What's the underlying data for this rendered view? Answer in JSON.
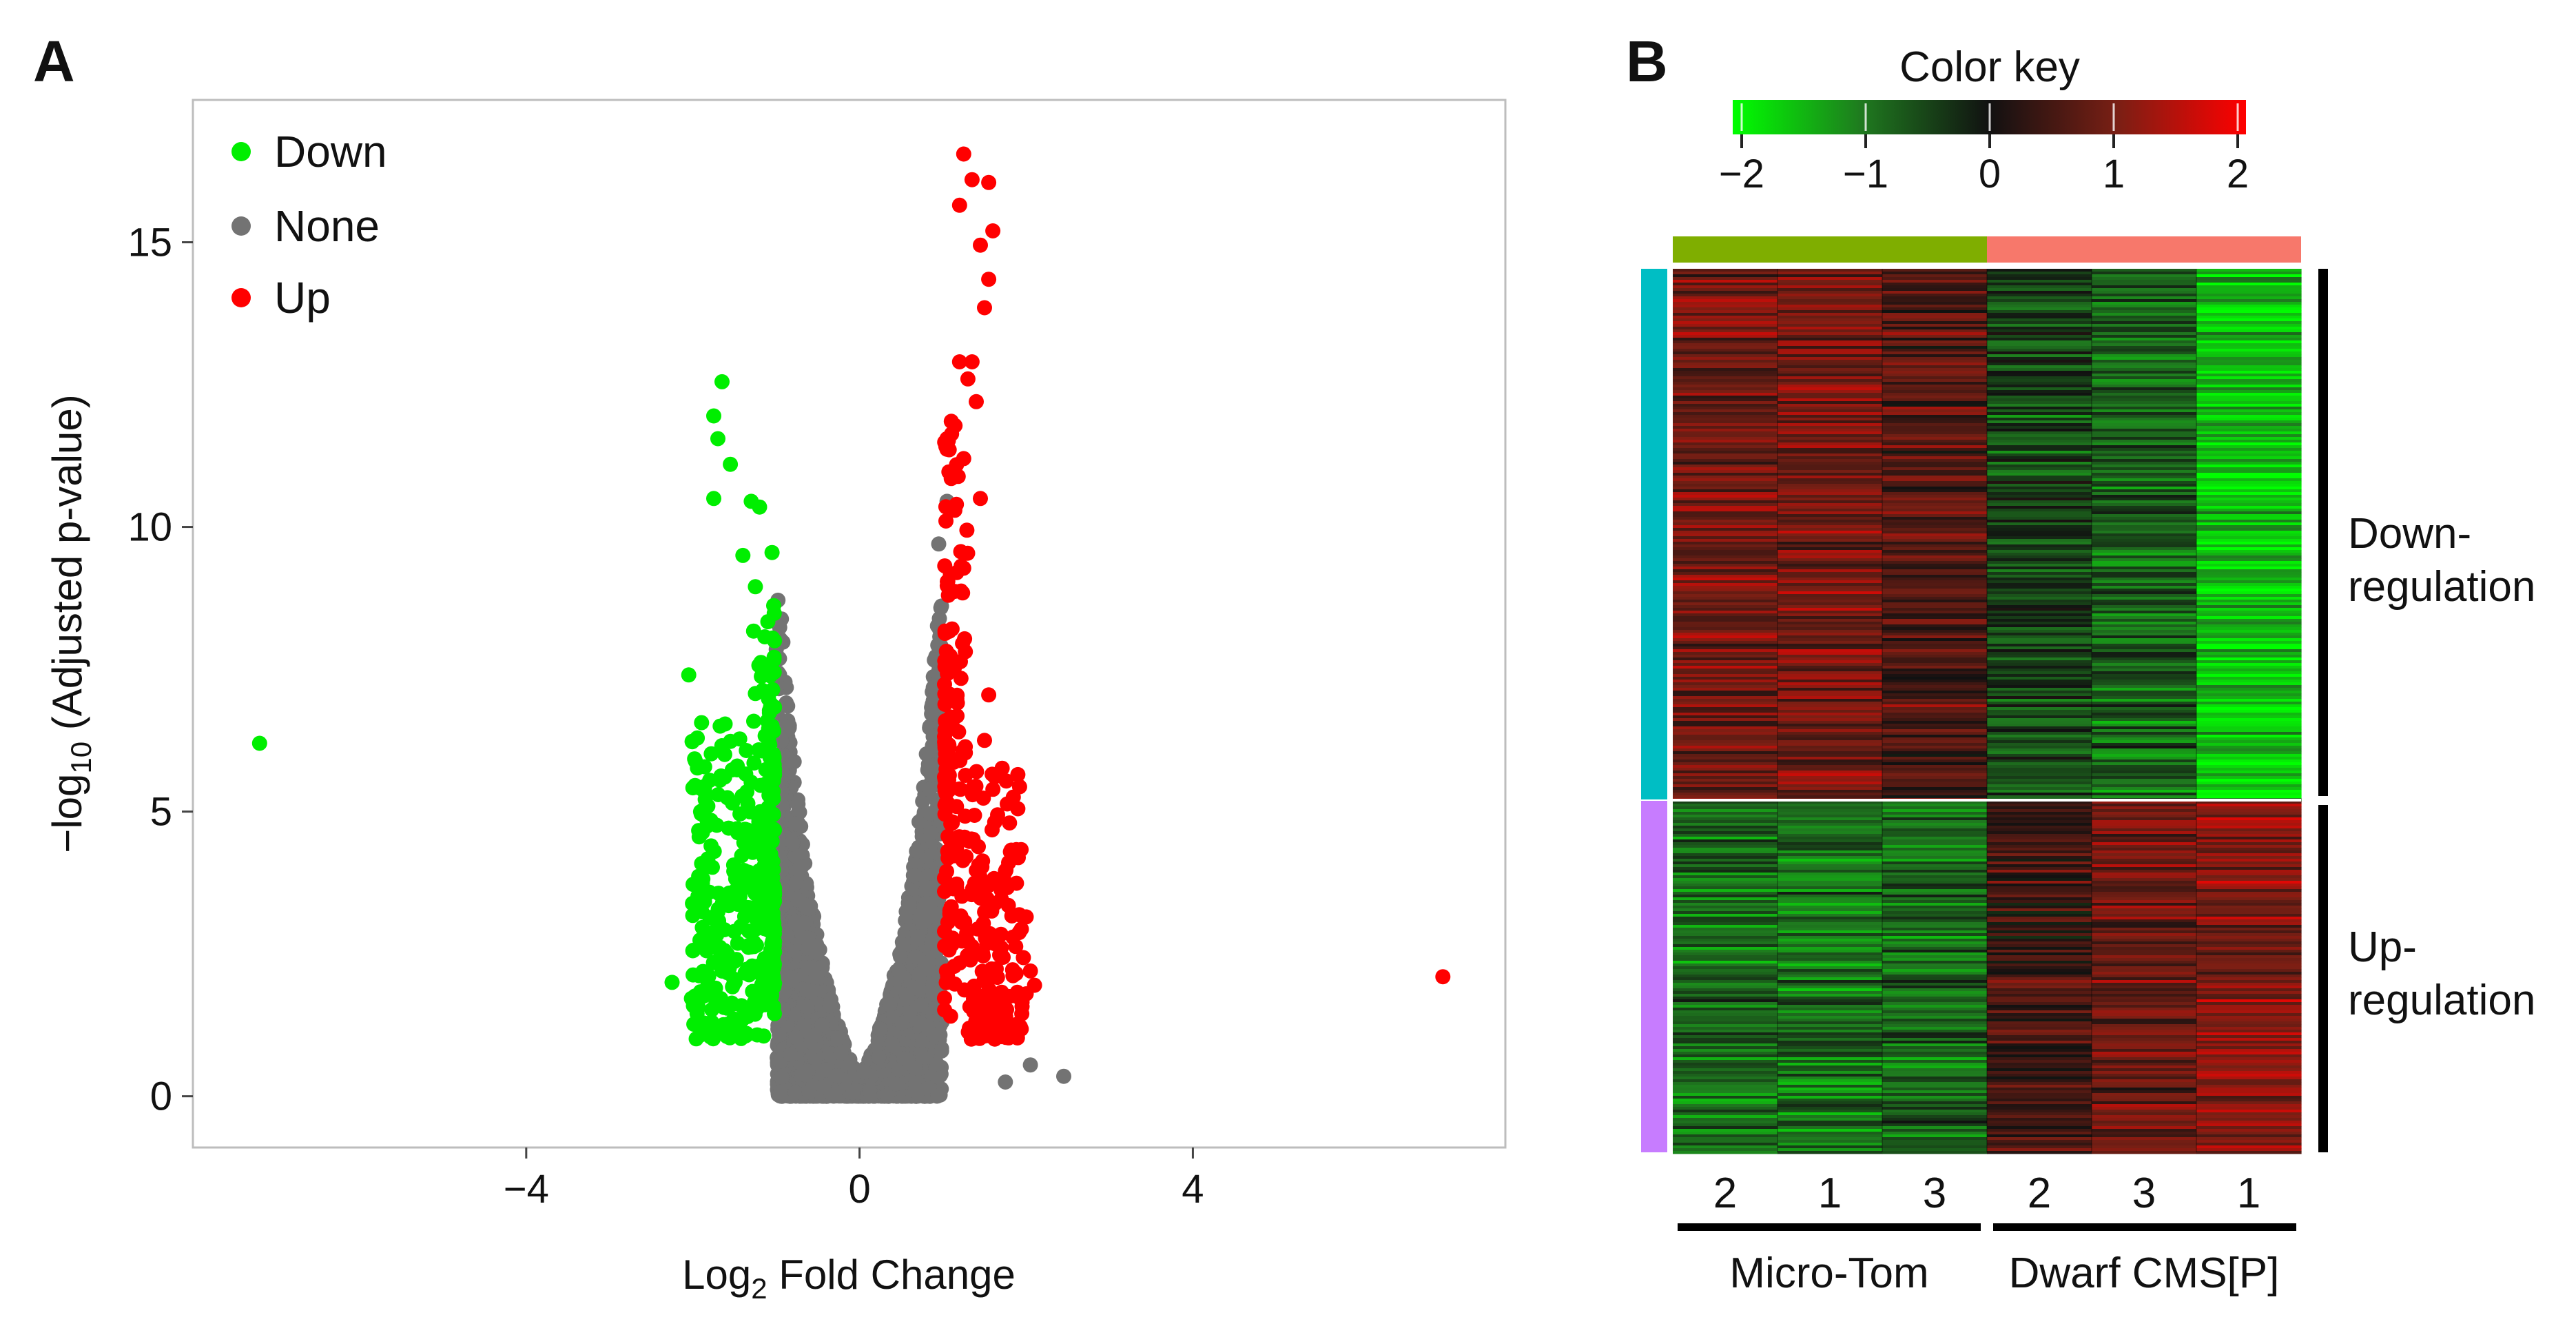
{
  "panels": {
    "a": "A",
    "b": "B"
  },
  "chart_data": [
    {
      "type": "scatter",
      "name": "volcano-plot",
      "xlabel": {
        "main": "Log",
        "sub": "2",
        "rest": " Fold Change"
      },
      "ylabel": {
        "pre": "−log",
        "sub": "10",
        "rest": " (Adjusted p-value)"
      },
      "xlim": [
        -8,
        7.75
      ],
      "ylim": [
        -0.9,
        17.5
      ],
      "xticks": [
        -4,
        0,
        4
      ],
      "xtick_labels": [
        "−4",
        "0",
        "4"
      ],
      "yticks": [
        0,
        5,
        10,
        15
      ],
      "ytick_labels": [
        "0",
        "5",
        "10",
        "15"
      ],
      "legend": [
        {
          "label": "Down",
          "color": "#00ee00"
        },
        {
          "label": "None",
          "color": "#737373"
        },
        {
          "label": "Up",
          "color": "#ff0000"
        }
      ],
      "thresholds": {
        "log2fc": 1
      },
      "series": [
        {
          "name": "Down",
          "color": "#00ee00",
          "outliers": [
            [
              -7.2,
              6.2
            ],
            [
              -1.65,
              12.55
            ],
            [
              -1.75,
              11.95
            ],
            [
              -1.7,
              11.55
            ],
            [
              -1.55,
              11.1
            ],
            [
              -1.75,
              10.5
            ],
            [
              -1.3,
              10.45
            ],
            [
              -1.2,
              10.35
            ],
            [
              -1.05,
              9.55
            ],
            [
              -1.4,
              9.5
            ],
            [
              -1.25,
              8.95
            ],
            [
              -2.05,
              7.4
            ],
            [
              -2.25,
              2.0
            ],
            [
              -1.95,
              1.45
            ]
          ],
          "points": []
        },
        {
          "name": "None",
          "color": "#737373",
          "outliers": [
            [
              1.75,
              0.25
            ],
            [
              2.05,
              0.55
            ],
            [
              2.45,
              0.35
            ],
            [
              1.05,
              10.45
            ],
            [
              0.95,
              9.7
            ],
            [
              -1.0,
              7.85
            ]
          ],
          "points": []
        },
        {
          "name": "Up",
          "color": "#ff0000",
          "outliers": [
            [
              7.0,
              2.1
            ],
            [
              1.25,
              16.55
            ],
            [
              1.35,
              16.1
            ],
            [
              1.55,
              16.05
            ],
            [
              1.2,
              15.65
            ],
            [
              1.6,
              15.2
            ],
            [
              1.45,
              14.95
            ],
            [
              1.55,
              14.35
            ],
            [
              1.5,
              13.85
            ],
            [
              1.2,
              12.9
            ],
            [
              1.35,
              12.9
            ],
            [
              1.3,
              12.6
            ],
            [
              1.4,
              12.2
            ],
            [
              1.05,
              11.55
            ],
            [
              1.25,
              11.2
            ],
            [
              1.1,
              10.85
            ],
            [
              1.45,
              10.5
            ],
            [
              1.55,
              7.05
            ],
            [
              1.5,
              6.25
            ],
            [
              1.9,
              5.65
            ],
            [
              1.9,
              5.05
            ],
            [
              1.8,
              4.8
            ],
            [
              1.75,
              3.95
            ],
            [
              2.0,
              3.15
            ],
            [
              2.05,
              2.2
            ],
            [
              2.1,
              1.95
            ],
            [
              2.0,
              1.8
            ],
            [
              1.95,
              1.65
            ]
          ],
          "points": []
        }
      ]
    },
    {
      "type": "heatmap",
      "name": "expression-heatmap",
      "color_key": {
        "title": "Color key",
        "min": -2,
        "max": 2,
        "ticks": [
          -2,
          -1,
          0,
          1,
          2
        ],
        "tick_labels": [
          "−2",
          "−1",
          "0",
          "1",
          "2"
        ],
        "colors": [
          "#00ff00",
          "#1f7a1f",
          "#111111",
          "#7a1f14",
          "#ff0000"
        ]
      },
      "columns": [
        "2",
        "1",
        "3",
        "2",
        "3",
        "1"
      ],
      "groups": [
        {
          "label": "Micro-Tom",
          "color": "#7fae00",
          "columns": [
            0,
            1,
            2
          ]
        },
        {
          "label": "Dwarf CMS[P]",
          "color": "#f7786b",
          "columns": [
            3,
            4,
            5
          ]
        }
      ],
      "row_clusters": [
        {
          "label": "Down-\nregulation",
          "line1": "Down-",
          "line2": "regulation",
          "color": "#00bec4",
          "fraction": 0.6,
          "column_means": [
            0.9,
            0.95,
            0.65,
            -0.5,
            -0.75,
            -1.5
          ]
        },
        {
          "label": "Up-\nregulation",
          "line1": "Up-",
          "line2": "regulation",
          "color": "#c77cff",
          "fraction": 0.4,
          "column_means": [
            -0.85,
            -0.85,
            -0.75,
            0.45,
            0.85,
            1.05
          ]
        }
      ]
    }
  ]
}
